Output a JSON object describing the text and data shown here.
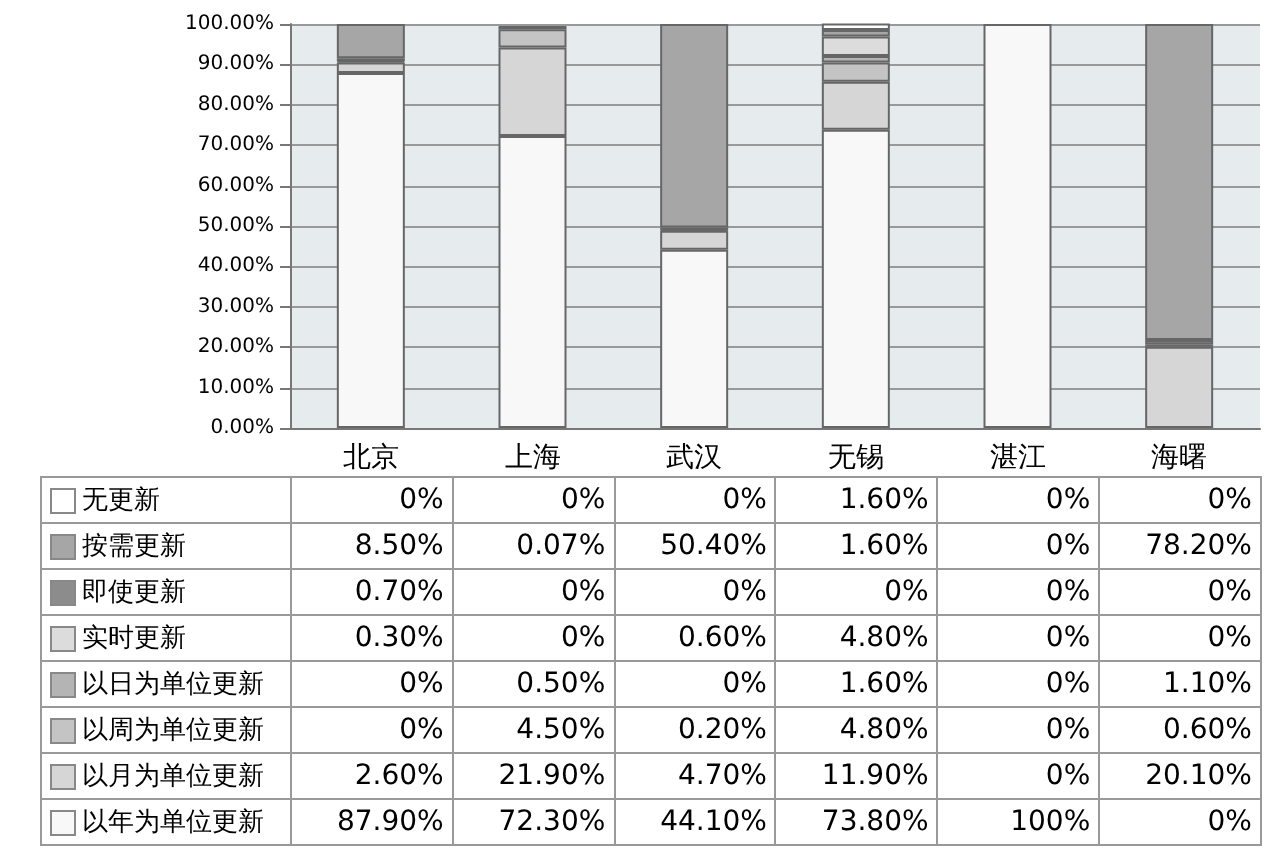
{
  "chart_data": {
    "type": "bar",
    "stacked": true,
    "categories": [
      "北京",
      "上海",
      "武汉",
      "无锡",
      "湛江",
      "海曙"
    ],
    "ylim": [
      0,
      100
    ],
    "yticks": [
      {
        "value": 0,
        "label": "0.00%"
      },
      {
        "value": 10,
        "label": "10.00%"
      },
      {
        "value": 20,
        "label": "20.00%"
      },
      {
        "value": 30,
        "label": "30.00%"
      },
      {
        "value": 40,
        "label": "40.00%"
      },
      {
        "value": 50,
        "label": "50.00%"
      },
      {
        "value": 60,
        "label": "60.00%"
      },
      {
        "value": 70,
        "label": "70.00%"
      },
      {
        "value": 80,
        "label": "80.00%"
      },
      {
        "value": 90,
        "label": "90.00%"
      },
      {
        "value": 100,
        "label": "100.00%"
      }
    ],
    "grid": "y",
    "legend": "bottom",
    "series": [
      {
        "name": "以年为单位更新",
        "color": "#f8f8f8",
        "values": [
          87.9,
          72.3,
          44.1,
          73.8,
          100,
          0
        ],
        "value_labels": [
          "87.90%",
          "72.30%",
          "44.10%",
          "73.80%",
          "100%",
          "0%"
        ]
      },
      {
        "name": "以月为单位更新",
        "color": "#d6d6d6",
        "values": [
          2.6,
          21.9,
          4.7,
          11.9,
          0,
          20.1
        ],
        "value_labels": [
          "2.60%",
          "21.90%",
          "4.70%",
          "11.90%",
          "0%",
          "20.10%"
        ]
      },
      {
        "name": "以周为单位更新",
        "color": "#c4c4c4",
        "values": [
          0,
          4.5,
          0.2,
          4.8,
          0,
          0.6
        ],
        "value_labels": [
          "0%",
          "4.50%",
          "0.20%",
          "4.80%",
          "0%",
          "0.60%"
        ]
      },
      {
        "name": "以日为单位更新",
        "color": "#b4b4b4",
        "values": [
          0,
          0.5,
          0,
          1.6,
          0,
          1.1
        ],
        "value_labels": [
          "0%",
          "0.50%",
          "0%",
          "1.60%",
          "0%",
          "1.10%"
        ]
      },
      {
        "name": "实时更新",
        "color": "#dcdcdc",
        "values": [
          0.3,
          0,
          0.6,
          4.8,
          0,
          0
        ],
        "value_labels": [
          "0.30%",
          "0%",
          "0.60%",
          "4.80%",
          "0%",
          "0%"
        ]
      },
      {
        "name": "即使更新",
        "color": "#8c8c8c",
        "values": [
          0.7,
          0,
          0,
          0,
          0,
          0
        ],
        "value_labels": [
          "0.70%",
          "0%",
          "0%",
          "0%",
          "0%",
          "0%"
        ]
      },
      {
        "name": "按需更新",
        "color": "#a6a6a6",
        "values": [
          8.5,
          0.07,
          50.4,
          1.6,
          0,
          78.2
        ],
        "value_labels": [
          "8.50%",
          "0.07%",
          "50.40%",
          "1.60%",
          "0%",
          "78.20%"
        ]
      },
      {
        "name": "无更新",
        "color": "#ffffff",
        "values": [
          0,
          0,
          0,
          1.6,
          0,
          0
        ],
        "value_labels": [
          "0%",
          "0%",
          "0%",
          "1.60%",
          "0%",
          "0%"
        ]
      }
    ]
  }
}
